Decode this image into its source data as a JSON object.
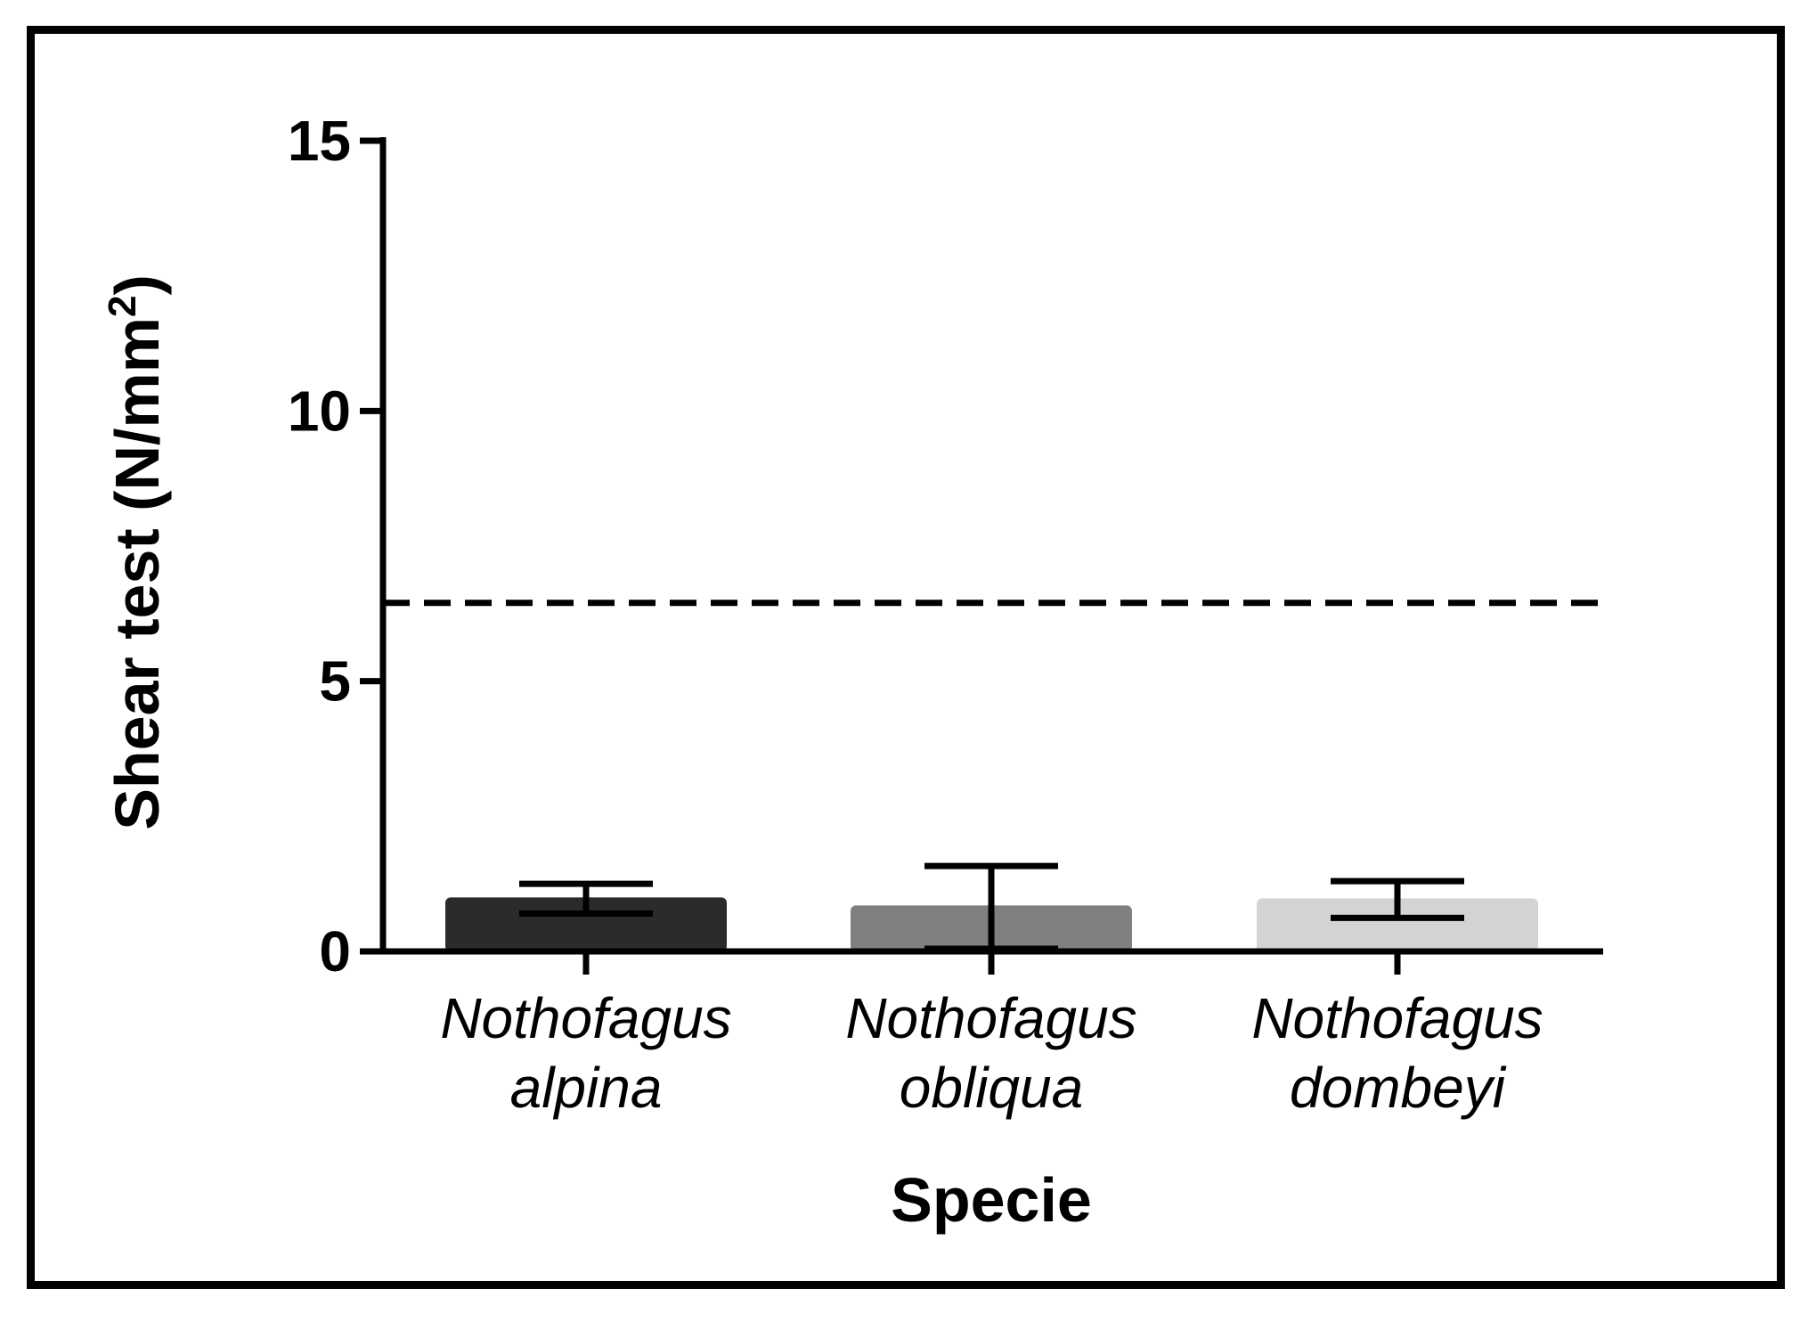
{
  "chart_data": {
    "type": "bar",
    "title": "",
    "xlabel": "Specie",
    "ylabel": {
      "main": "Shear test (N/mm",
      "superscript": "2",
      "close": ")"
    },
    "ylim": [
      0,
      15
    ],
    "yticks": [
      {
        "value": 0,
        "label": "0"
      },
      {
        "value": 5,
        "label": "5"
      },
      {
        "value": 10,
        "label": "10"
      },
      {
        "value": 15,
        "label": "15"
      }
    ],
    "categories": [
      {
        "line1": "Nothofagus",
        "line2": "alpina"
      },
      {
        "line1": "Nothofagus",
        "line2": "obliqua"
      },
      {
        "line1": "Nothofagus",
        "line2": "dombeyi"
      }
    ],
    "values": [
      1.0,
      0.85,
      0.98
    ],
    "error_low": [
      0.7,
      0.05,
      0.62
    ],
    "error_high": [
      1.25,
      1.58,
      1.3
    ],
    "bar_colors": [
      "#2b2b2b",
      "#808080",
      "#d3d3d3"
    ],
    "reference_line": {
      "value": 6.45,
      "style": "dashed"
    },
    "grid": false,
    "legend": "none"
  }
}
